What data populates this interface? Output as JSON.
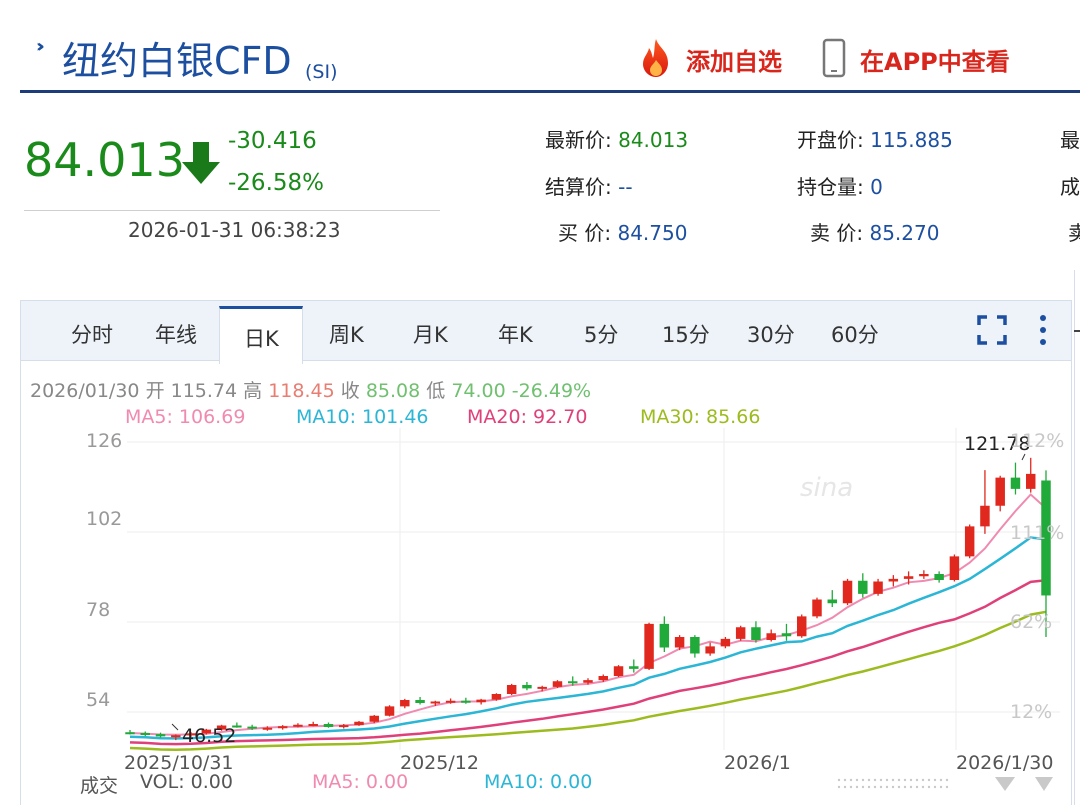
{
  "header": {
    "title": "纽约白银CFD",
    "code": "(SI)",
    "add_favorite": "添加自选",
    "view_in_app": "在APP中查看"
  },
  "quote": {
    "price": "84.013",
    "change": "-30.416",
    "change_pct": "-26.58%",
    "timestamp": "2026-01-31 06:38:23"
  },
  "stats": {
    "latest_label": "最新价:",
    "latest": "84.013",
    "open_label": "开盘价:",
    "open": "115.885",
    "settle_label": "结算价:",
    "settle": "--",
    "oi_label": "持仓量:",
    "oi": "0",
    "bid_label": "买  价:",
    "bid": "84.750",
    "ask_label": "卖  价:",
    "ask": "85.270",
    "cut1": "最",
    "cut2": "成",
    "cut3": "卖"
  },
  "tabs": [
    "分时",
    "年线",
    "日K",
    "周K",
    "月K",
    "年K",
    "5分",
    "15分",
    "30分",
    "60分"
  ],
  "active_tab": "日K",
  "ohlc": {
    "date": "2026/01/30",
    "open_label": "开",
    "open": "115.74",
    "high_label": "高",
    "high": "118.45",
    "close_label": "收",
    "close": "85.08",
    "low_label": "低",
    "low": "74.00",
    "pct": "-26.49%"
  },
  "ma": {
    "ma5": "MA5: 106.69",
    "ma10": "MA10: 101.46",
    "ma20": "MA20: 92.70",
    "ma30": "MA30: 85.66"
  },
  "volume": {
    "label": "成交",
    "vol": "VOL: 0.00",
    "ma5": "MA5: 0.00",
    "ma10": "MA10: 0.00"
  },
  "colors": {
    "up": "#e0281e",
    "down": "#1faa3a",
    "ma5": "#f08ab0",
    "ma10": "#2bb6d6",
    "ma20": "#e0407a",
    "ma30": "#9cbb1e",
    "accent": "#1d4fa0"
  },
  "chart_data": {
    "type": "candlestick",
    "y_ticks": [
      "126",
      "102",
      "78",
      "54"
    ],
    "ylim": [
      42,
      130
    ],
    "pct_ticks": [
      "112%",
      "111%",
      "62%",
      "12%"
    ],
    "x_labels": [
      "2025/10/31",
      "2025/12",
      "2026/1",
      "2026/1/30"
    ],
    "max_label": "121.78",
    "min_label": "46.52",
    "candles": [
      [
        48.6,
        49.2,
        48.0,
        48.4
      ],
      [
        48.4,
        48.8,
        47.6,
        48.1
      ],
      [
        48.1,
        48.5,
        47.2,
        47.5
      ],
      [
        47.5,
        48.0,
        46.5,
        47.8
      ],
      [
        47.8,
        48.6,
        47.4,
        48.3
      ],
      [
        48.3,
        49.5,
        48.0,
        49.3
      ],
      [
        49.3,
        50.6,
        49.0,
        50.4
      ],
      [
        50.4,
        51.2,
        49.8,
        50.1
      ],
      [
        50.1,
        50.6,
        49.2,
        49.6
      ],
      [
        49.6,
        50.2,
        49.0,
        49.8
      ],
      [
        49.8,
        50.5,
        49.3,
        50.2
      ],
      [
        50.2,
        51.0,
        49.9,
        50.6
      ],
      [
        50.6,
        51.4,
        50.2,
        50.8
      ],
      [
        50.8,
        51.2,
        49.8,
        50.0
      ],
      [
        50.0,
        50.8,
        49.6,
        50.5
      ],
      [
        50.5,
        51.6,
        50.3,
        51.4
      ],
      [
        51.4,
        53.2,
        51.0,
        53.0
      ],
      [
        53.0,
        55.8,
        52.8,
        55.5
      ],
      [
        55.5,
        57.5,
        55.0,
        57.2
      ],
      [
        57.2,
        58.0,
        56.0,
        56.4
      ],
      [
        56.4,
        57.0,
        55.6,
        56.8
      ],
      [
        56.8,
        57.6,
        56.2,
        57.0
      ],
      [
        57.0,
        57.8,
        56.2,
        56.6
      ],
      [
        56.6,
        57.5,
        56.0,
        57.3
      ],
      [
        57.3,
        59.0,
        57.0,
        58.8
      ],
      [
        58.8,
        61.5,
        58.5,
        61.2
      ],
      [
        61.2,
        62.0,
        59.8,
        60.3
      ],
      [
        60.3,
        61.0,
        59.5,
        60.7
      ],
      [
        60.7,
        62.5,
        60.4,
        62.2
      ],
      [
        62.2,
        63.5,
        61.0,
        61.8
      ],
      [
        61.8,
        63.0,
        61.3,
        62.5
      ],
      [
        62.5,
        64.0,
        62.0,
        63.6
      ],
      [
        63.6,
        66.5,
        63.3,
        66.2
      ],
      [
        66.2,
        68.0,
        64.5,
        65.5
      ],
      [
        65.5,
        77.8,
        65.2,
        77.5
      ],
      [
        77.5,
        79.5,
        70.0,
        71.2
      ],
      [
        71.2,
        74.5,
        70.5,
        74.0
      ],
      [
        74.0,
        74.5,
        68.5,
        69.6
      ],
      [
        69.6,
        72.5,
        69.0,
        71.5
      ],
      [
        71.5,
        74.0,
        71.0,
        73.5
      ],
      [
        73.5,
        77.0,
        73.0,
        76.6
      ],
      [
        76.6,
        78.2,
        72.5,
        73.2
      ],
      [
        73.2,
        76.0,
        72.8,
        75.0
      ],
      [
        75.0,
        77.5,
        73.0,
        74.2
      ],
      [
        74.2,
        80.0,
        73.8,
        79.5
      ],
      [
        79.5,
        84.5,
        79.0,
        84.0
      ],
      [
        84.0,
        86.5,
        82.0,
        83.0
      ],
      [
        83.0,
        89.5,
        82.5,
        89.0
      ],
      [
        89.0,
        91.0,
        84.5,
        85.5
      ],
      [
        85.5,
        89.5,
        85.0,
        88.8
      ],
      [
        88.8,
        90.5,
        87.5,
        89.5
      ],
      [
        89.5,
        91.5,
        88.0,
        90.2
      ],
      [
        90.2,
        91.8,
        89.5,
        90.8
      ],
      [
        90.8,
        91.5,
        88.5,
        89.2
      ],
      [
        89.2,
        96.0,
        88.8,
        95.5
      ],
      [
        95.5,
        104.0,
        95.0,
        103.5
      ],
      [
        103.5,
        118.5,
        101.5,
        109.0
      ],
      [
        109.0,
        117.0,
        107.5,
        116.5
      ],
      [
        116.5,
        120.5,
        112.0,
        113.5
      ],
      [
        113.5,
        121.78,
        112.5,
        117.5
      ],
      [
        115.74,
        118.45,
        74.0,
        85.08
      ]
    ]
  }
}
